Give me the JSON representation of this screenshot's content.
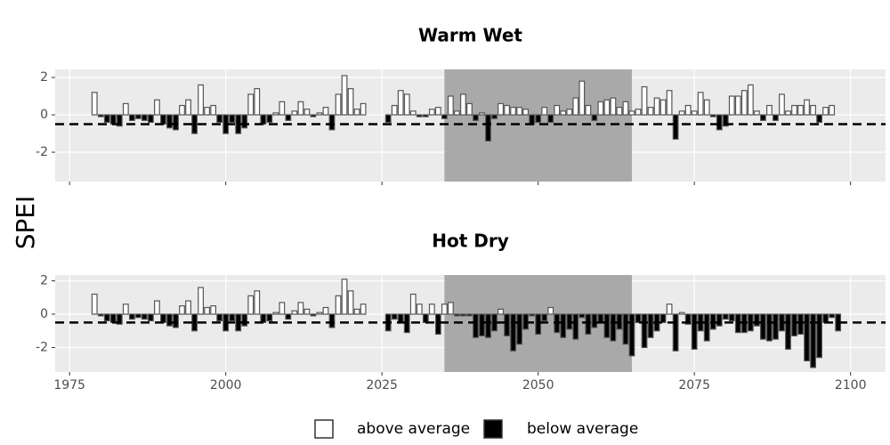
{
  "ylabel": "SPEI",
  "legend": [
    {
      "name": "above average",
      "color": "#ffffff"
    },
    {
      "name": "below average",
      "color": "#000000"
    }
  ],
  "chart_data": [
    {
      "type": "bar",
      "title": "Warm Wet",
      "x": [
        1979,
        1980,
        1981,
        1982,
        1983,
        1984,
        1985,
        1986,
        1987,
        1988,
        1989,
        1990,
        1991,
        1992,
        1993,
        1994,
        1995,
        1996,
        1997,
        1998,
        1999,
        2000,
        2001,
        2002,
        2003,
        2004,
        2005,
        2006,
        2007,
        2008,
        2009,
        2010,
        2011,
        2012,
        2013,
        2014,
        2015,
        2016,
        2017,
        2018,
        2019,
        2020,
        2021,
        2022,
        2026,
        2027,
        2028,
        2029,
        2030,
        2031,
        2032,
        2033,
        2034,
        2035,
        2036,
        2037,
        2038,
        2039,
        2040,
        2041,
        2042,
        2043,
        2044,
        2045,
        2046,
        2047,
        2048,
        2049,
        2050,
        2051,
        2052,
        2053,
        2054,
        2055,
        2056,
        2057,
        2058,
        2059,
        2060,
        2061,
        2062,
        2063,
        2064,
        2065,
        2066,
        2067,
        2068,
        2069,
        2070,
        2071,
        2072,
        2073,
        2074,
        2075,
        2076,
        2077,
        2078,
        2079,
        2080,
        2081,
        2082,
        2083,
        2084,
        2085,
        2086,
        2087,
        2088,
        2089,
        2090,
        2091,
        2092,
        2093,
        2094,
        2095,
        2096,
        2097
      ],
      "values": [
        1.2,
        -0.1,
        -0.4,
        -0.5,
        -0.6,
        0.6,
        -0.3,
        -0.2,
        -0.3,
        -0.4,
        0.8,
        -0.5,
        -0.7,
        -0.8,
        0.5,
        0.8,
        -1.0,
        1.6,
        0.4,
        0.5,
        -0.4,
        -1.0,
        -0.4,
        -1.0,
        -0.7,
        1.1,
        1.4,
        -0.5,
        -0.4,
        0.1,
        0.7,
        -0.3,
        0.2,
        0.7,
        0.3,
        -0.1,
        0.1,
        0.4,
        -0.8,
        1.1,
        2.1,
        1.4,
        0.3,
        0.6,
        -0.4,
        0.5,
        1.3,
        1.1,
        0.2,
        -0.1,
        -0.1,
        0.3,
        0.4,
        -0.2,
        1.0,
        0.2,
        1.1,
        0.6,
        -0.3,
        0.1,
        -1.4,
        -0.2,
        0.6,
        0.5,
        0.4,
        0.4,
        0.3,
        -0.5,
        -0.4,
        0.4,
        -0.4,
        0.5,
        0.2,
        0.3,
        0.9,
        1.8,
        0.5,
        -0.3,
        0.7,
        0.8,
        0.9,
        0.4,
        0.7,
        0.2,
        0.3,
        1.5,
        0.4,
        0.9,
        0.8,
        1.3,
        -1.3,
        0.2,
        0.5,
        0.2,
        1.2,
        0.8,
        -0.1,
        -0.8,
        -0.6,
        1.0,
        1.0,
        1.3,
        1.6,
        0.2,
        -0.3,
        0.5,
        -0.3,
        1.1,
        0.2,
        0.5,
        0.5,
        0.8,
        0.5,
        -0.4,
        0.4,
        0.5
      ],
      "xlim": [
        1972.7,
        2105.6
      ],
      "ylim": [
        -3.57,
        2.43
      ],
      "yticks": [
        -2,
        0,
        2
      ],
      "shade": [
        2035,
        2065
      ],
      "reference_line": -0.5,
      "grid": true
    },
    {
      "type": "bar",
      "title": "Hot Dry",
      "x": [
        1979,
        1980,
        1981,
        1982,
        1983,
        1984,
        1985,
        1986,
        1987,
        1988,
        1989,
        1990,
        1991,
        1992,
        1993,
        1994,
        1995,
        1996,
        1997,
        1998,
        1999,
        2000,
        2001,
        2002,
        2003,
        2004,
        2005,
        2006,
        2007,
        2008,
        2009,
        2010,
        2011,
        2012,
        2013,
        2014,
        2015,
        2016,
        2017,
        2018,
        2019,
        2020,
        2021,
        2022,
        2026,
        2027,
        2028,
        2029,
        2030,
        2031,
        2032,
        2033,
        2034,
        2035,
        2036,
        2037,
        2038,
        2039,
        2040,
        2041,
        2042,
        2043,
        2044,
        2045,
        2046,
        2047,
        2048,
        2049,
        2050,
        2051,
        2052,
        2053,
        2054,
        2055,
        2056,
        2057,
        2058,
        2059,
        2060,
        2061,
        2062,
        2063,
        2064,
        2065,
        2066,
        2067,
        2068,
        2069,
        2070,
        2071,
        2072,
        2073,
        2074,
        2075,
        2076,
        2077,
        2078,
        2079,
        2080,
        2081,
        2082,
        2083,
        2084,
        2085,
        2086,
        2087,
        2088,
        2089,
        2090,
        2091,
        2092,
        2093,
        2094,
        2095,
        2096,
        2097,
        2098
      ],
      "values": [
        1.2,
        -0.1,
        -0.4,
        -0.5,
        -0.6,
        0.6,
        -0.3,
        -0.2,
        -0.3,
        -0.4,
        0.8,
        -0.5,
        -0.7,
        -0.8,
        0.5,
        0.8,
        -1.0,
        1.6,
        0.4,
        0.5,
        -0.4,
        -1.0,
        -0.4,
        -1.0,
        -0.7,
        1.1,
        1.4,
        -0.5,
        -0.4,
        0.1,
        0.7,
        -0.3,
        0.2,
        0.7,
        0.3,
        -0.1,
        0.1,
        0.4,
        -0.8,
        1.1,
        2.1,
        1.4,
        0.3,
        0.6,
        -1.0,
        -0.3,
        -0.5,
        -1.1,
        1.2,
        0.6,
        -0.5,
        0.6,
        -1.2,
        0.6,
        0.7,
        -0.1,
        -0.1,
        -0.1,
        -1.4,
        -1.3,
        -1.4,
        -1.0,
        0.3,
        -1.3,
        -2.2,
        -1.8,
        -0.9,
        -0.1,
        -1.2,
        -0.4,
        0.4,
        -1.1,
        -1.4,
        -0.9,
        -1.5,
        -0.2,
        -1.2,
        -0.8,
        -0.5,
        -1.4,
        -1.6,
        -0.9,
        -1.8,
        -2.5,
        -0.5,
        -2.0,
        -1.4,
        -1.0,
        -0.5,
        0.6,
        -2.2,
        0.1,
        -0.6,
        -2.1,
        -1.0,
        -1.6,
        -0.9,
        -0.7,
        -0.3,
        -0.4,
        -1.1,
        -1.1,
        -1.0,
        -0.7,
        -1.5,
        -1.6,
        -1.5,
        -1.0,
        -2.1,
        -1.3,
        -1.2,
        -2.8,
        -3.2,
        -2.6,
        -0.5,
        -0.2,
        -1.0
      ],
      "xlim": [
        1972.7,
        2105.6
      ],
      "ylim": [
        -3.47,
        2.35
      ],
      "yticks": [
        -2,
        0,
        2
      ],
      "xticks": [
        1975,
        2000,
        2025,
        2050,
        2075,
        2100
      ],
      "shade": [
        2035,
        2065
      ],
      "reference_line": -0.5,
      "grid": true
    }
  ]
}
